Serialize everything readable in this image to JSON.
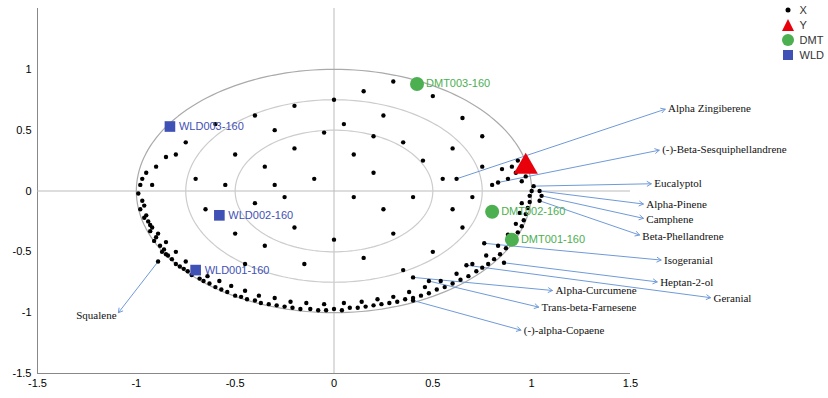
{
  "chart_data": {
    "type": "scatter",
    "xlim": [
      -1.5,
      1.5
    ],
    "ylim": [
      -1.5,
      1.5
    ],
    "xticks": [
      -1.5,
      -1,
      -0.5,
      0,
      0.5,
      1,
      1.5
    ],
    "yticks": [
      -1.5,
      -1,
      -0.5,
      0,
      0.5,
      1
    ],
    "circles": [
      0.5,
      0.75,
      1
    ],
    "legend": "top-right",
    "series": [
      {
        "name": "X",
        "color": "#000000",
        "marker": "circle",
        "points": [
          [
            -0.98,
            0.05
          ],
          [
            -0.99,
            -0.02
          ],
          [
            -0.97,
            -0.08
          ],
          [
            -0.96,
            -0.12
          ],
          [
            -0.98,
            -0.15
          ],
          [
            -0.95,
            -0.2
          ],
          [
            -0.94,
            -0.25
          ],
          [
            -0.96,
            -0.22
          ],
          [
            -0.92,
            -0.3
          ],
          [
            -0.93,
            -0.33
          ],
          [
            -0.9,
            -0.38
          ],
          [
            -0.91,
            -0.41
          ],
          [
            -0.88,
            -0.45
          ],
          [
            -0.86,
            -0.48
          ],
          [
            -0.87,
            -0.5
          ],
          [
            -0.84,
            -0.53
          ],
          [
            -0.82,
            -0.56
          ],
          [
            -0.85,
            -0.52
          ],
          [
            -0.8,
            -0.6
          ],
          [
            -0.78,
            -0.62
          ],
          [
            -0.76,
            -0.64
          ],
          [
            -0.74,
            -0.66
          ],
          [
            -0.72,
            -0.69
          ],
          [
            -0.68,
            -0.72
          ],
          [
            -0.66,
            -0.74
          ],
          [
            -0.63,
            -0.76
          ],
          [
            -0.6,
            -0.79
          ],
          [
            -0.57,
            -0.81
          ],
          [
            -0.54,
            -0.83
          ],
          [
            -0.5,
            -0.86
          ],
          [
            -0.47,
            -0.87
          ],
          [
            -0.44,
            -0.89
          ],
          [
            -0.4,
            -0.9
          ],
          [
            -0.37,
            -0.92
          ],
          [
            -0.33,
            -0.93
          ],
          [
            -0.29,
            -0.94
          ],
          [
            -0.25,
            -0.95
          ],
          [
            -0.21,
            -0.96
          ],
          [
            -0.17,
            -0.97
          ],
          [
            -0.12,
            -0.97
          ],
          [
            -0.08,
            -0.98
          ],
          [
            -0.04,
            -0.98
          ],
          [
            0.0,
            -0.97
          ],
          [
            0.04,
            -0.98
          ],
          [
            0.08,
            -0.96
          ],
          [
            0.12,
            -0.96
          ],
          [
            0.16,
            -0.95
          ],
          [
            0.2,
            -0.94
          ],
          [
            0.24,
            -0.93
          ],
          [
            0.28,
            -0.92
          ],
          [
            0.32,
            -0.91
          ],
          [
            0.36,
            -0.89
          ],
          [
            0.4,
            -0.88
          ],
          [
            0.44,
            -0.86
          ],
          [
            0.48,
            -0.84
          ],
          [
            0.52,
            -0.81
          ],
          [
            0.56,
            -0.79
          ],
          [
            0.6,
            -0.76
          ],
          [
            0.64,
            -0.73
          ],
          [
            0.68,
            -0.7
          ],
          [
            0.72,
            -0.66
          ],
          [
            0.75,
            -0.63
          ],
          [
            0.78,
            -0.6
          ],
          [
            0.81,
            -0.56
          ],
          [
            0.84,
            -0.52
          ],
          [
            0.87,
            -0.47
          ],
          [
            0.89,
            -0.43
          ],
          [
            0.91,
            -0.39
          ],
          [
            0.93,
            -0.34
          ],
          [
            0.95,
            -0.29
          ],
          [
            0.96,
            -0.24
          ],
          [
            0.97,
            -0.19
          ],
          [
            0.98,
            -0.14
          ],
          [
            0.99,
            -0.09
          ],
          [
            0.99,
            -0.04
          ],
          [
            1.0,
            0.0
          ],
          [
            -0.93,
            -0.28
          ],
          [
            -0.89,
            -0.35
          ],
          [
            -0.85,
            -0.42
          ],
          [
            -0.8,
            -0.5
          ],
          [
            -0.75,
            -0.58
          ],
          [
            -0.7,
            -0.63
          ],
          [
            -0.64,
            -0.7
          ],
          [
            -0.58,
            -0.74
          ],
          [
            -0.52,
            -0.78
          ],
          [
            -0.45,
            -0.82
          ],
          [
            -0.38,
            -0.86
          ],
          [
            -0.3,
            -0.88
          ],
          [
            -0.22,
            -0.91
          ],
          [
            -0.14,
            -0.92
          ],
          [
            -0.05,
            -0.93
          ],
          [
            0.05,
            -0.92
          ],
          [
            0.14,
            -0.91
          ],
          [
            0.22,
            -0.89
          ],
          [
            0.3,
            -0.87
          ],
          [
            0.38,
            -0.83
          ],
          [
            0.46,
            -0.79
          ],
          [
            0.54,
            -0.74
          ],
          [
            0.62,
            -0.68
          ],
          [
            0.7,
            -0.6
          ],
          [
            0.77,
            -0.53
          ],
          [
            0.83,
            -0.45
          ],
          [
            0.88,
            -0.36
          ],
          [
            0.92,
            -0.27
          ],
          [
            0.94,
            -0.18
          ],
          [
            0.95,
            -0.1
          ],
          [
            0.92,
            0.15
          ],
          [
            0.9,
            0.2
          ],
          [
            0.95,
            0.08
          ],
          [
            0.88,
            0.1
          ],
          [
            0.85,
            0.18
          ],
          [
            0.93,
            0.25
          ],
          [
            0.8,
            0.05
          ],
          [
            0.97,
            0.12
          ],
          [
            -0.97,
            0.1
          ],
          [
            -0.95,
            0.15
          ],
          [
            -0.9,
            0.2
          ],
          [
            -0.85,
            0.28
          ],
          [
            -0.92,
            0.05
          ],
          [
            -0.75,
            0.4
          ],
          [
            -0.6,
            0.55
          ],
          [
            -0.8,
            0.3
          ],
          [
            -0.4,
            0.62
          ],
          [
            -0.2,
            0.7
          ],
          [
            0.0,
            0.75
          ],
          [
            0.15,
            0.82
          ],
          [
            0.3,
            0.9
          ],
          [
            0.5,
            0.78
          ],
          [
            0.65,
            0.6
          ],
          [
            0.75,
            0.45
          ],
          [
            0.05,
            0.55
          ],
          [
            -0.05,
            0.48
          ],
          [
            0.25,
            0.62
          ],
          [
            -0.3,
            0.5
          ],
          [
            -0.5,
            0.3
          ],
          [
            -0.35,
            0.2
          ],
          [
            -0.2,
            0.35
          ],
          [
            0.1,
            0.3
          ],
          [
            0.2,
            0.15
          ],
          [
            0.35,
            0.4
          ],
          [
            0.45,
            0.25
          ],
          [
            0.6,
            0.35
          ],
          [
            0.55,
            0.1
          ],
          [
            0.4,
            -0.05
          ],
          [
            0.25,
            -0.15
          ],
          [
            0.1,
            -0.05
          ],
          [
            -0.1,
            0.1
          ],
          [
            -0.25,
            -0.05
          ],
          [
            -0.4,
            -0.1
          ],
          [
            -0.55,
            0.05
          ],
          [
            -0.65,
            -0.15
          ],
          [
            -0.7,
            0.1
          ],
          [
            -0.5,
            -0.35
          ],
          [
            -0.35,
            -0.45
          ],
          [
            -0.2,
            -0.3
          ],
          [
            0.0,
            -0.4
          ],
          [
            0.15,
            -0.55
          ],
          [
            0.3,
            -0.35
          ],
          [
            0.5,
            -0.5
          ],
          [
            0.65,
            -0.3
          ],
          [
            0.7,
            -0.05
          ],
          [
            -0.15,
            -0.6
          ],
          [
            -0.45,
            -0.6
          ],
          [
            0.35,
            -0.65
          ],
          [
            0.6,
            -0.15
          ],
          [
            0.75,
            0.2
          ],
          [
            0.2,
            0.45
          ],
          [
            -0.3,
            0.05
          ],
          [
            0.62,
            0.1
          ],
          [
            0.83,
            0.07
          ],
          [
            1.01,
            0.04
          ],
          [
            1.04,
            0.0
          ],
          [
            1.05,
            -0.04
          ],
          [
            1.04,
            -0.08
          ],
          [
            0.76,
            -0.43
          ],
          [
            0.86,
            -0.59
          ],
          [
            0.67,
            -0.61
          ],
          [
            0.4,
            -0.71
          ],
          [
            0.48,
            -0.74
          ],
          [
            0.4,
            -0.9
          ],
          [
            -0.89,
            -0.58
          ]
        ]
      },
      {
        "name": "Y",
        "color": "#e8000b",
        "marker": "triangle",
        "points": [
          [
            0.97,
            0.2
          ]
        ]
      },
      {
        "name": "DMT",
        "color": "#4caf50",
        "marker": "circle",
        "points": [
          [
            0.42,
            0.88
          ],
          [
            0.8,
            -0.17
          ],
          [
            0.9,
            -0.4
          ]
        ],
        "labels": [
          "DMT003-160",
          "DMT002-160",
          "DMT001-160"
        ]
      },
      {
        "name": "WLD",
        "color": "#3f51b5",
        "marker": "square",
        "points": [
          [
            -0.83,
            0.53
          ],
          [
            -0.58,
            -0.2
          ],
          [
            -0.7,
            -0.65
          ]
        ],
        "labels": [
          "WLD003-160",
          "WLD002-160",
          "WLD001-160"
        ]
      }
    ],
    "annotations": [
      {
        "text": "Alpha Zingiberene",
        "x": 0.62,
        "y": 0.1
      },
      {
        "text": "(-)-Beta-Sesquiphellandrene",
        "x": 0.83,
        "y": 0.07
      },
      {
        "text": "Eucalyptol",
        "x": 1.01,
        "y": 0.04
      },
      {
        "text": "Alpha-Pinene",
        "x": 1.04,
        "y": 0.0
      },
      {
        "text": "Camphene",
        "x": 1.05,
        "y": -0.04
      },
      {
        "text": "Beta-Phellandrene",
        "x": 1.04,
        "y": -0.08
      },
      {
        "text": "Isogeranial",
        "x": 0.76,
        "y": -0.43
      },
      {
        "text": "Heptan-2-ol",
        "x": 0.86,
        "y": -0.59
      },
      {
        "text": "Geranial",
        "x": 0.67,
        "y": -0.61
      },
      {
        "text": "Alpha-Curcumene",
        "x": 0.4,
        "y": -0.71
      },
      {
        "text": "Trans-beta-Farnesene",
        "x": 0.48,
        "y": -0.74
      },
      {
        "text": "(-)-alpha-Copaene",
        "x": 0.4,
        "y": -0.9
      },
      {
        "text": "Squalene",
        "x": -0.89,
        "y": -0.58
      }
    ]
  }
}
